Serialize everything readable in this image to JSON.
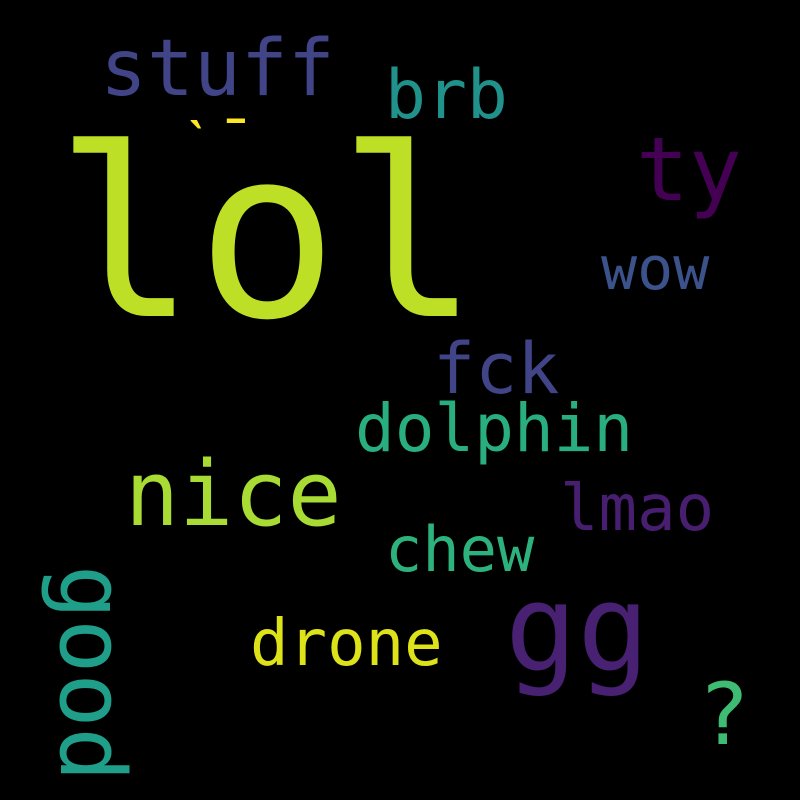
{
  "word_cloud": {
    "background": "#000000",
    "words": [
      {
        "id": "lol",
        "text": "lol",
        "color": "#bddf26"
      },
      {
        "id": "stuff",
        "text": "stuff",
        "color": "#414487"
      },
      {
        "id": "brb",
        "text": "brb",
        "color": "#21918c"
      },
      {
        "id": "glyph",
        "text": "ˋ¯",
        "color": "#fde725"
      },
      {
        "id": "ty",
        "text": "ty",
        "color": "#440154"
      },
      {
        "id": "wow",
        "text": "wow",
        "color": "#3b528b"
      },
      {
        "id": "fck",
        "text": "fck",
        "color": "#414487"
      },
      {
        "id": "dolphin",
        "text": "dolphin",
        "color": "#29af7f"
      },
      {
        "id": "nice",
        "text": "nice",
        "color": "#a8db34"
      },
      {
        "id": "lmao",
        "text": "lmao",
        "color": "#481f70"
      },
      {
        "id": "chew",
        "text": "chew",
        "color": "#2db27d"
      },
      {
        "id": "drone",
        "text": "drone",
        "color": "#dde318"
      },
      {
        "id": "gg",
        "text": "gg",
        "color": "#482173"
      },
      {
        "id": "q",
        "text": "?",
        "color": "#3fbc73"
      },
      {
        "id": "good",
        "text": "good",
        "color": "#1f9e89"
      }
    ]
  }
}
